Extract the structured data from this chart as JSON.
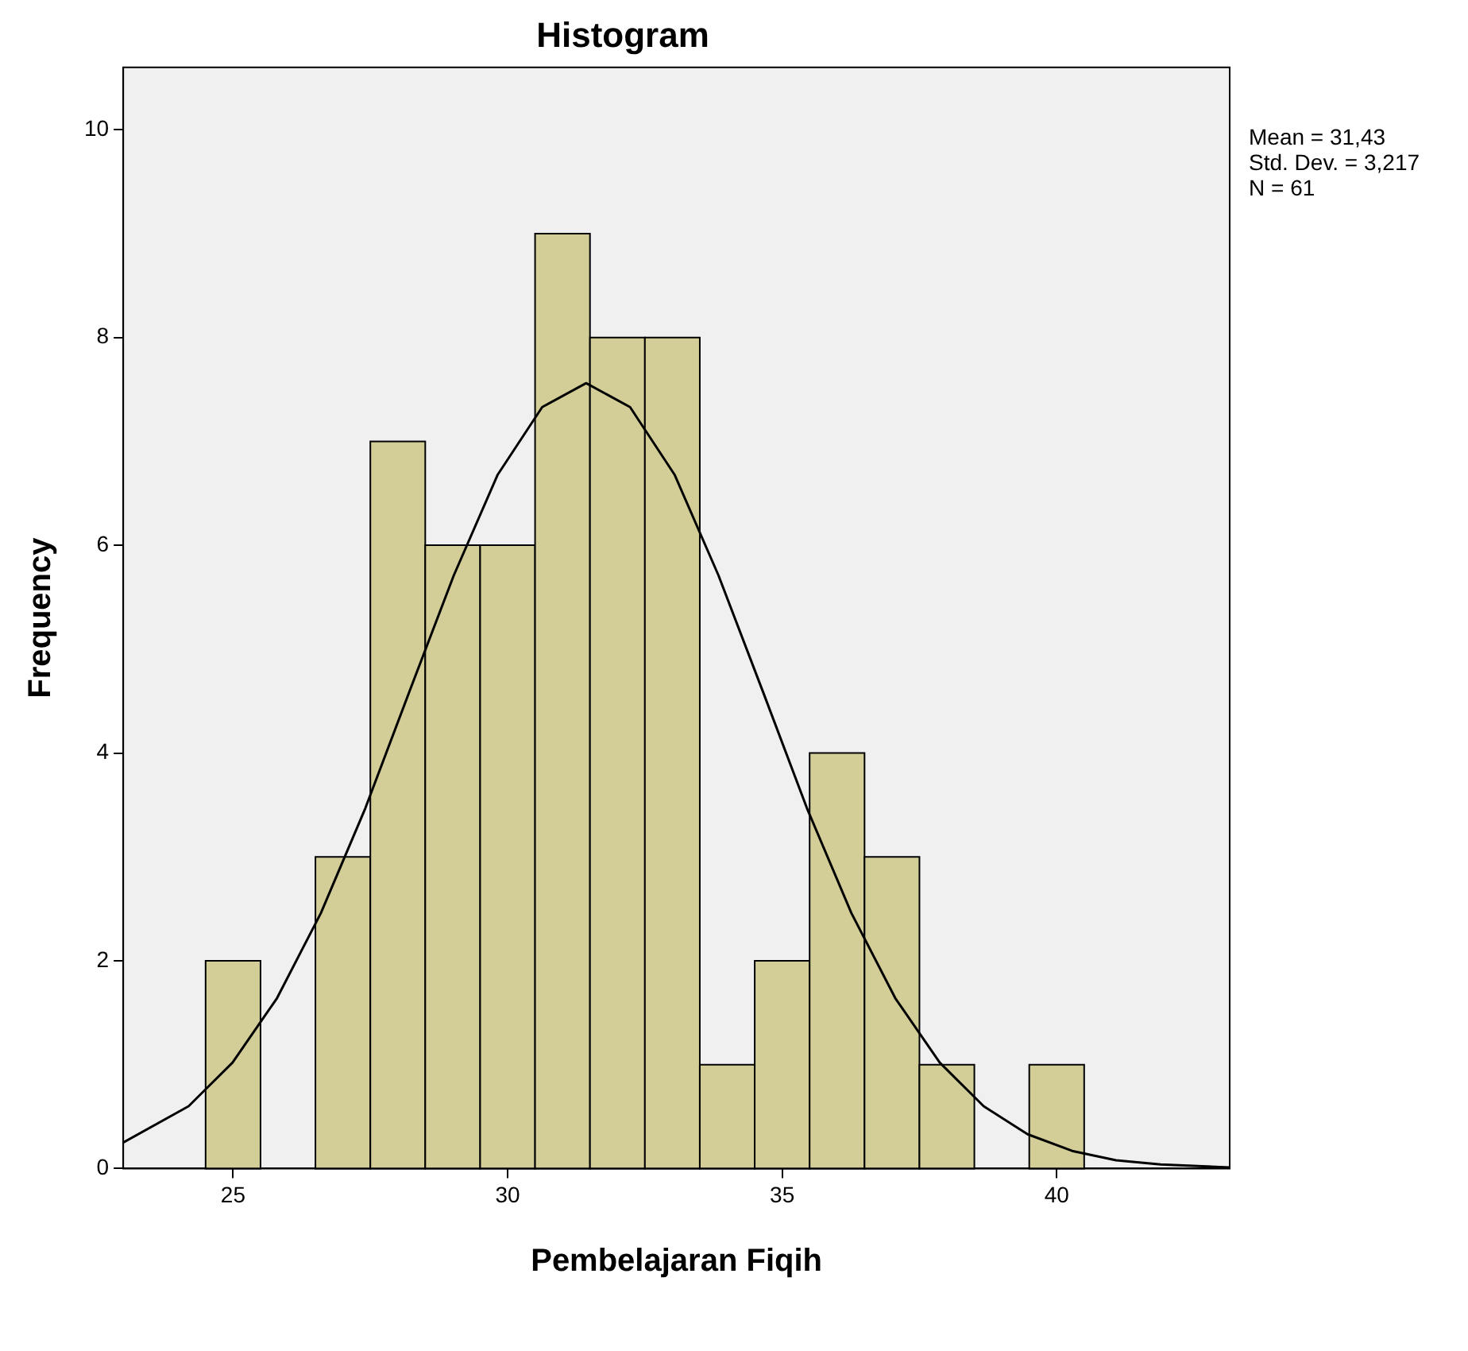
{
  "chart_data": {
    "type": "histogram",
    "title": "Histogram",
    "xlabel": "Pembelajaran Fiqih",
    "ylabel": "Frequency",
    "bins": [
      24.5,
      25.5,
      26.5,
      27.5,
      28.5,
      29.5,
      30.5,
      31.5,
      32.5,
      33.5,
      34.5,
      35.5,
      36.5,
      37.5,
      38.5,
      39.5,
      40.5
    ],
    "values": [
      2,
      0,
      3,
      7,
      6,
      6,
      9,
      8,
      8,
      1,
      2,
      4,
      3,
      1,
      0,
      1
    ],
    "color": "#d3ce97",
    "series": [
      {
        "type": "line",
        "color": "#000000",
        "x": [
          23,
          24.19,
          24.99,
          25.8,
          26.6,
          27.41,
          28.21,
          29.02,
          29.82,
          30.63,
          31.43,
          32.23,
          33.04,
          33.84,
          34.65,
          35.45,
          36.26,
          37.06,
          37.87,
          38.67,
          39.47,
          40.28,
          41.08,
          41.89,
          43.15
        ],
        "values": [
          0.25,
          0.6,
          1.02,
          1.64,
          2.46,
          3.47,
          4.59,
          5.71,
          6.68,
          7.33,
          7.56,
          7.33,
          6.68,
          5.71,
          4.59,
          3.47,
          2.46,
          1.64,
          1.02,
          0.6,
          0.33,
          0.17,
          0.08,
          0.04,
          0.01
        ]
      }
    ],
    "xlim": [
      23,
      43.15
    ],
    "ylim": [
      0,
      10.6
    ],
    "xticks": [
      25,
      30,
      35,
      40
    ],
    "yticks": [
      0,
      2,
      4,
      6,
      8,
      10
    ],
    "grid": false,
    "legend": false,
    "annotations": [
      "Mean = 31,43",
      "Std. Dev. = 3,217",
      "N = 61"
    ]
  }
}
